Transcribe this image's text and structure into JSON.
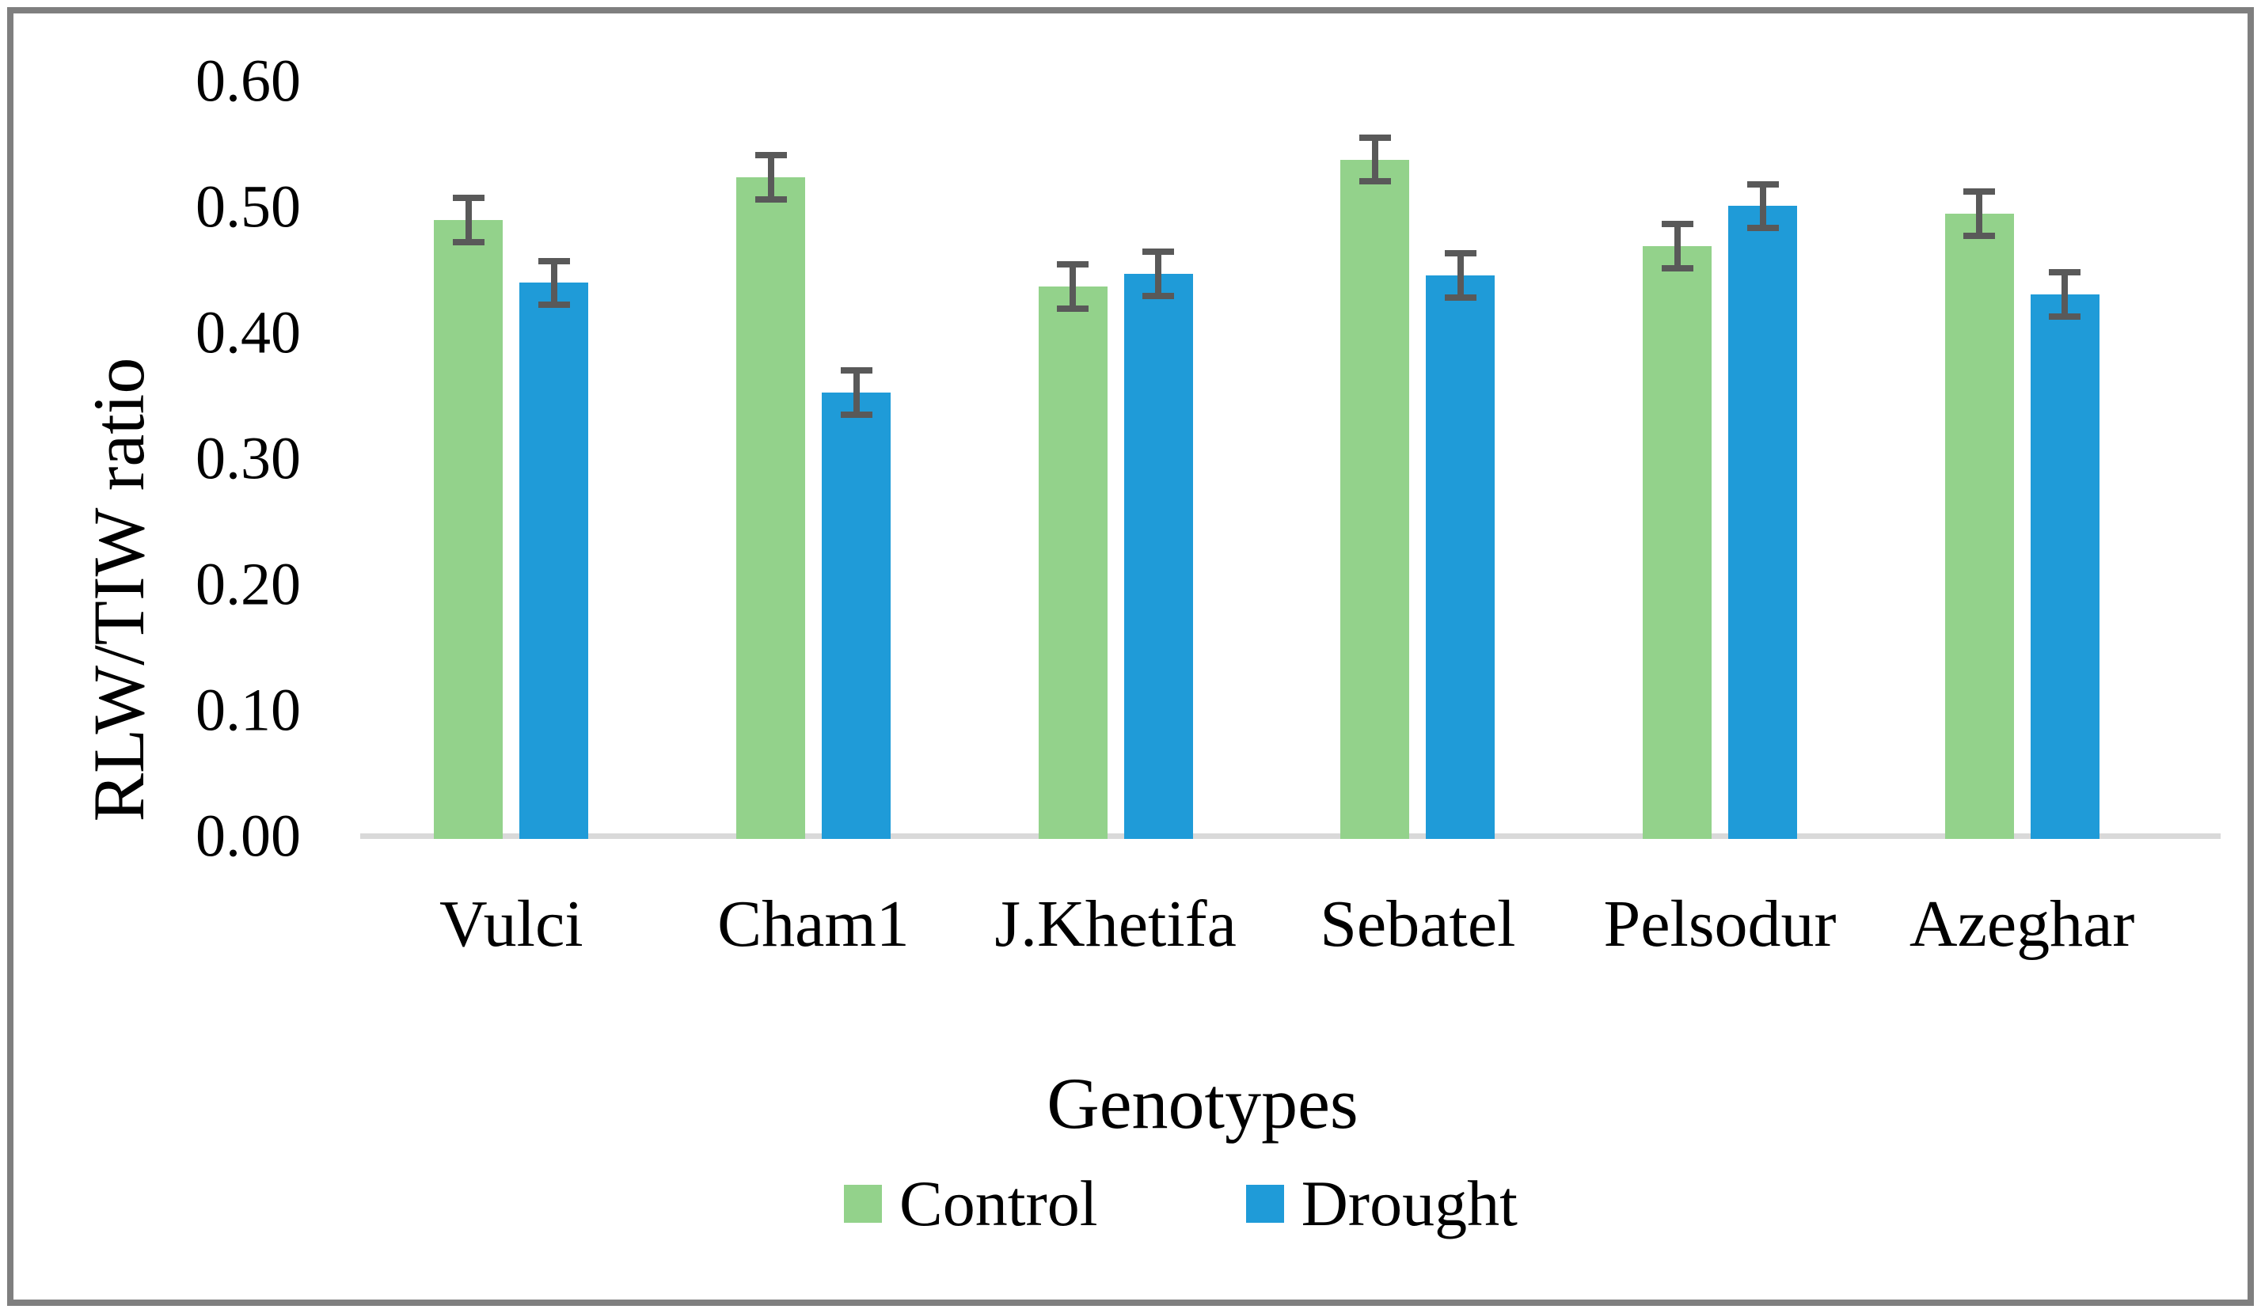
{
  "figure": {
    "background_color": "#ffffff",
    "frame_color": "#7f7f7f",
    "y_tick_labels": [
      "0.00",
      "0.10",
      "0.20",
      "0.30",
      "0.40",
      "0.50",
      "0.60"
    ]
  },
  "chart_data": {
    "type": "bar",
    "title": "",
    "xlabel": "Genotypes",
    "ylabel": "RLW/TIW ratio",
    "categories": [
      "Vulci",
      "Cham1",
      "J.Khetifa",
      "Sebatel",
      "Pelsodur",
      "Azeghar"
    ],
    "series": [
      {
        "name": "Control",
        "color": "#93d28b",
        "values": [
          0.49,
          0.524,
          0.437,
          0.538,
          0.469,
          0.495
        ],
        "errors": [
          0.02,
          0.02,
          0.02,
          0.02,
          0.02,
          0.02
        ]
      },
      {
        "name": "Drought",
        "color": "#1f9bd8",
        "values": [
          0.44,
          0.353,
          0.447,
          0.446,
          0.501,
          0.431
        ],
        "errors": [
          0.02,
          0.02,
          0.02,
          0.02,
          0.02,
          0.02
        ]
      }
    ],
    "ylim": [
      0.0,
      0.6
    ],
    "ytick_step": 0.1,
    "grid": false,
    "error_bars": true,
    "error_bar_color": "#595959",
    "axis_line_color": "#d9d9d9",
    "legend_position": "bottom"
  }
}
